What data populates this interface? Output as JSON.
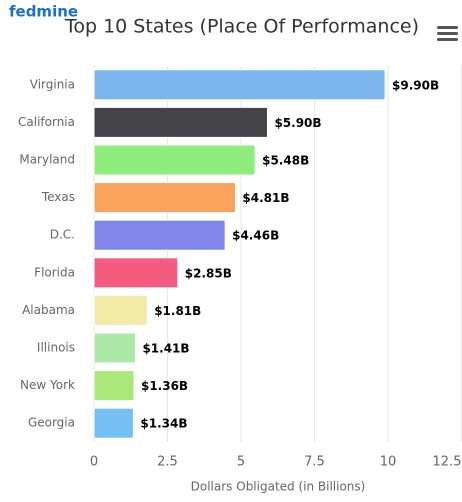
{
  "logo": "fedmine",
  "chart_data": {
    "type": "bar",
    "orientation": "horizontal",
    "title": "Top 10 States (Place Of Performance)",
    "x_label": "Dollars Obligated (in Billions)",
    "categories": [
      "Virginia",
      "California",
      "Maryland",
      "Texas",
      "D.C.",
      "Florida",
      "Alabama",
      "Illinois",
      "New York",
      "Georgia"
    ],
    "values": [
      9.9,
      5.9,
      5.48,
      4.81,
      4.46,
      2.85,
      1.81,
      1.41,
      1.36,
      1.34
    ],
    "value_labels": [
      "$9.90B",
      "$5.90B",
      "$5.48B",
      "$4.81B",
      "$4.46B",
      "$2.85B",
      "$1.81B",
      "$1.41B",
      "$1.36B",
      "$1.34B"
    ],
    "colors": [
      "#7cb5ec",
      "#434348",
      "#90ed7d",
      "#f7a35c",
      "#8085e9",
      "#f45b80",
      "#f3eaa7",
      "#ace8a8",
      "#a9e879",
      "#74c0f5"
    ],
    "xlim": [
      0,
      12.5
    ],
    "xticks": [
      0,
      2.5,
      5,
      7.5,
      10,
      12.5
    ],
    "grid": true
  }
}
